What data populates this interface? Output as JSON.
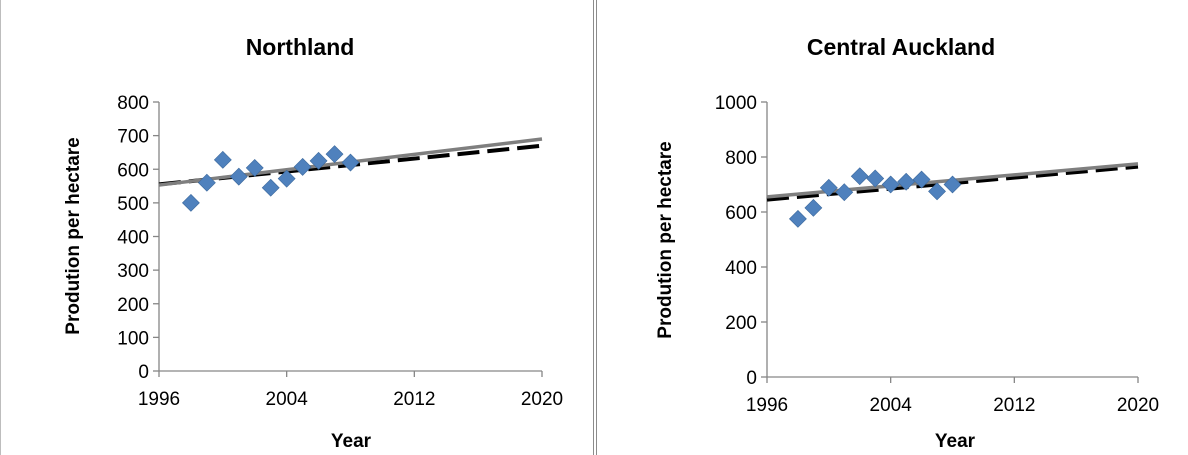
{
  "chart_data": [
    {
      "type": "scatter",
      "title": "Northland",
      "xlabel": "Year",
      "ylabel": "Prodution per hectare",
      "xlim": [
        1996,
        2020
      ],
      "ylim": [
        0,
        800
      ],
      "xticks": [
        1996,
        2004,
        2012,
        2020
      ],
      "yticks": [
        0,
        100,
        200,
        300,
        400,
        500,
        600,
        700,
        800
      ],
      "grid": false,
      "legend": "none",
      "series": [
        {
          "kind": "scatter",
          "marker": "diamond",
          "color": "#4f81bd",
          "x": [
            1998,
            1999,
            2000,
            2001,
            2002,
            2003,
            2004,
            2005,
            2006,
            2007,
            2008
          ],
          "y": [
            500,
            560,
            628,
            578,
            604,
            545,
            572,
            607,
            625,
            645,
            620
          ]
        },
        {
          "kind": "line",
          "style": "dashed",
          "color": "#000000",
          "x": [
            1996,
            2020
          ],
          "y": [
            555,
            670
          ]
        },
        {
          "kind": "line",
          "style": "solid",
          "color": "#7f7f7f",
          "x": [
            1996,
            2020
          ],
          "y": [
            553,
            690
          ]
        }
      ]
    },
    {
      "type": "scatter",
      "title": "Central Auckland",
      "xlabel": "Year",
      "ylabel": "Prodution per hectare",
      "xlim": [
        1996,
        2020
      ],
      "ylim": [
        0,
        1000
      ],
      "xticks": [
        1996,
        2004,
        2012,
        2020
      ],
      "yticks": [
        0,
        200,
        400,
        600,
        800,
        1000
      ],
      "grid": false,
      "legend": "none",
      "series": [
        {
          "kind": "scatter",
          "marker": "diamond",
          "color": "#4f81bd",
          "x": [
            1998,
            1999,
            2000,
            2001,
            2002,
            2003,
            2004,
            2005,
            2006,
            2007,
            2008
          ],
          "y": [
            575,
            615,
            688,
            672,
            730,
            722,
            700,
            710,
            718,
            675,
            700
          ]
        },
        {
          "kind": "line",
          "style": "dashed",
          "color": "#000000",
          "x": [
            1996,
            2020
          ],
          "y": [
            645,
            765
          ]
        },
        {
          "kind": "line",
          "style": "solid",
          "color": "#7f7f7f",
          "x": [
            1996,
            2020
          ],
          "y": [
            655,
            775
          ]
        }
      ]
    }
  ]
}
